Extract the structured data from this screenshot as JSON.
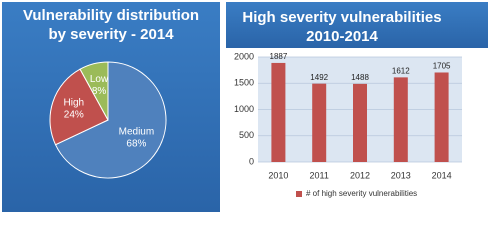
{
  "chart_data": [
    {
      "type": "pie",
      "title": "Vulnerability  distribution by severity - 2014",
      "categories": [
        "Medium",
        "High",
        "Low"
      ],
      "values": [
        68,
        24,
        8
      ],
      "value_labels": [
        "68%",
        "24%",
        "8%"
      ],
      "colors": [
        "#4f81bd",
        "#c0504d",
        "#9bbb59"
      ]
    },
    {
      "type": "bar",
      "title": "High severity vulnerabilities 2010-2014",
      "categories": [
        "2010",
        "2011",
        "2012",
        "2013",
        "2014"
      ],
      "series": [
        {
          "name": "# of high severity vulnerabilities",
          "color": "#c0504d",
          "values": [
            1887,
            1492,
            1488,
            1612,
            1705
          ]
        }
      ],
      "ylim": [
        0,
        2000
      ],
      "yticks": [
        0,
        500,
        1000,
        1500,
        2000
      ],
      "grid": true
    }
  ]
}
